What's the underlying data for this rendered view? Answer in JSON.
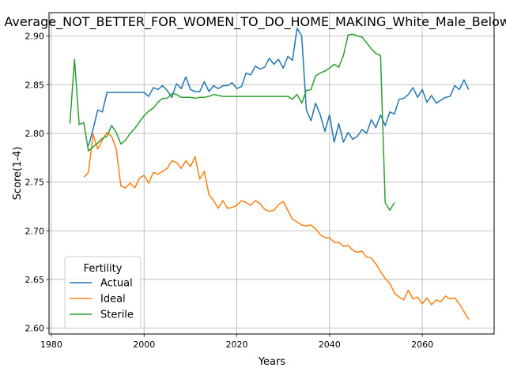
{
  "chart_data": {
    "type": "line",
    "title": "Average_NOT_BETTER_FOR_WOMEN_TO_DO_HOME_MAKING_White_Male_Below_Avg",
    "xlabel": "Years",
    "ylabel": "Score(1-4)",
    "xlim": [
      1979.5,
      2075.5
    ],
    "ylim": [
      2.594,
      2.924
    ],
    "xticks": [
      1980,
      2000,
      2020,
      2040,
      2060
    ],
    "yticks": [
      2.6,
      2.65,
      2.7,
      2.75,
      2.8,
      2.85,
      2.9
    ],
    "ytick_labels": [
      "2.60",
      "2.65",
      "2.70",
      "2.75",
      "2.80",
      "2.85",
      "2.90"
    ],
    "grid": true,
    "legend": {
      "title": "Fertility",
      "position": "lower-left"
    },
    "colors": {
      "Actual": "#1f77b4",
      "Ideal": "#ff7f0e",
      "Sterile": "#2ca02c"
    },
    "series": [
      {
        "name": "Actual",
        "x": [
          1988,
          1989,
          1990,
          1991,
          1992,
          1993,
          1994,
          1995,
          1996,
          1997,
          1998,
          1999,
          2000,
          2001,
          2002,
          2003,
          2004,
          2005,
          2006,
          2007,
          2008,
          2009,
          2010,
          2011,
          2012,
          2013,
          2014,
          2015,
          2016,
          2017,
          2018,
          2019,
          2020,
          2021,
          2022,
          2023,
          2024,
          2025,
          2026,
          2027,
          2028,
          2029,
          2030,
          2031,
          2032,
          2033,
          2034,
          2035,
          2036,
          2037,
          2038,
          2039,
          2040,
          2041,
          2042,
          2043,
          2044,
          2045,
          2046,
          2047,
          2048,
          2049,
          2050,
          2051,
          2052,
          2053,
          2054,
          2055,
          2056,
          2057,
          2058,
          2059,
          2060,
          2061,
          2062,
          2063,
          2064,
          2065,
          2066,
          2067,
          2068,
          2069,
          2070
        ],
        "values": [
          2.787,
          2.804,
          2.824,
          2.822,
          2.842,
          2.842,
          2.842,
          2.842,
          2.842,
          2.842,
          2.842,
          2.842,
          2.842,
          2.838,
          2.847,
          2.845,
          2.849,
          2.844,
          2.837,
          2.851,
          2.846,
          2.858,
          2.845,
          2.843,
          2.843,
          2.853,
          2.843,
          2.849,
          2.846,
          2.849,
          2.849,
          2.852,
          2.846,
          2.848,
          2.862,
          2.86,
          2.869,
          2.866,
          2.868,
          2.877,
          2.871,
          2.876,
          2.867,
          2.879,
          2.875,
          2.908,
          2.9,
          2.824,
          2.813,
          2.831,
          2.819,
          2.802,
          2.819,
          2.791,
          2.81,
          2.791,
          2.801,
          2.794,
          2.797,
          2.804,
          2.8,
          2.814,
          2.806,
          2.819,
          2.808,
          2.822,
          2.82,
          2.835,
          2.836,
          2.84,
          2.847,
          2.837,
          2.845,
          2.832,
          2.839,
          2.831,
          2.834,
          2.837,
          2.838,
          2.849,
          2.845,
          2.855,
          2.845
        ]
      },
      {
        "name": "Ideal",
        "x": [
          1987,
          1988,
          1989,
          1990,
          1991,
          1992,
          1993,
          1994,
          1995,
          1996,
          1997,
          1998,
          1999,
          2000,
          2001,
          2002,
          2003,
          2004,
          2005,
          2006,
          2007,
          2008,
          2009,
          2010,
          2011,
          2012,
          2013,
          2014,
          2015,
          2016,
          2017,
          2018,
          2019,
          2020,
          2021,
          2022,
          2023,
          2024,
          2025,
          2026,
          2027,
          2028,
          2029,
          2030,
          2031,
          2032,
          2033,
          2034,
          2035,
          2036,
          2037,
          2038,
          2039,
          2040,
          2041,
          2042,
          2043,
          2044,
          2045,
          2046,
          2047,
          2048,
          2049,
          2050,
          2051,
          2052,
          2053,
          2054,
          2055,
          2056,
          2057,
          2058,
          2059,
          2060,
          2061,
          2062,
          2063,
          2064,
          2065,
          2066,
          2067,
          2068,
          2069,
          2070
        ],
        "values": [
          2.755,
          2.76,
          2.799,
          2.784,
          2.793,
          2.801,
          2.797,
          2.784,
          2.746,
          2.744,
          2.749,
          2.744,
          2.754,
          2.757,
          2.749,
          2.76,
          2.758,
          2.761,
          2.764,
          2.772,
          2.77,
          2.764,
          2.772,
          2.766,
          2.776,
          2.753,
          2.761,
          2.737,
          2.731,
          2.723,
          2.731,
          2.723,
          2.724,
          2.726,
          2.731,
          2.729,
          2.726,
          2.731,
          2.728,
          2.722,
          2.72,
          2.721,
          2.727,
          2.73,
          2.721,
          2.712,
          2.709,
          2.706,
          2.705,
          2.706,
          2.702,
          2.696,
          2.693,
          2.693,
          2.688,
          2.688,
          2.684,
          2.685,
          2.68,
          2.678,
          2.679,
          2.673,
          2.672,
          2.666,
          2.658,
          2.651,
          2.646,
          2.636,
          2.632,
          2.629,
          2.639,
          2.63,
          2.632,
          2.625,
          2.631,
          2.624,
          2.629,
          2.627,
          2.633,
          2.63,
          2.631,
          2.625,
          2.617,
          2.609
        ]
      },
      {
        "name": "Sterile",
        "x": [
          1984,
          1985,
          1986,
          1987,
          1988,
          1989,
          1990,
          1991,
          1992,
          1993,
          1994,
          1995,
          1996,
          1997,
          1998,
          1999,
          2000,
          2001,
          2002,
          2003,
          2004,
          2005,
          2006,
          2007,
          2008,
          2009,
          2010,
          2011,
          2012,
          2013,
          2014,
          2015,
          2016,
          2017,
          2018,
          2019,
          2020,
          2021,
          2022,
          2023,
          2024,
          2025,
          2026,
          2027,
          2028,
          2029,
          2030,
          2031,
          2032,
          2033,
          2034,
          2035,
          2036,
          2037,
          2038,
          2039,
          2040,
          2041,
          2042,
          2043,
          2044,
          2045,
          2046,
          2047,
          2048,
          2049,
          2050,
          2051,
          2052,
          2053,
          2054
        ],
        "values": [
          2.81,
          2.876,
          2.809,
          2.811,
          2.782,
          2.786,
          2.79,
          2.795,
          2.797,
          2.808,
          2.801,
          2.789,
          2.793,
          2.8,
          2.805,
          2.812,
          2.818,
          2.823,
          2.826,
          2.832,
          2.836,
          2.836,
          2.841,
          2.84,
          2.837,
          2.837,
          2.837,
          2.836,
          2.837,
          2.837,
          2.838,
          2.84,
          2.839,
          2.838,
          2.838,
          2.838,
          2.838,
          2.838,
          2.838,
          2.838,
          2.838,
          2.838,
          2.838,
          2.838,
          2.838,
          2.838,
          2.838,
          2.838,
          2.835,
          2.84,
          2.831,
          2.844,
          2.845,
          2.859,
          2.862,
          2.864,
          2.867,
          2.871,
          2.868,
          2.88,
          2.901,
          2.902,
          2.9,
          2.899,
          2.893,
          2.887,
          2.882,
          2.88,
          2.729,
          2.721,
          2.729
        ]
      }
    ]
  }
}
